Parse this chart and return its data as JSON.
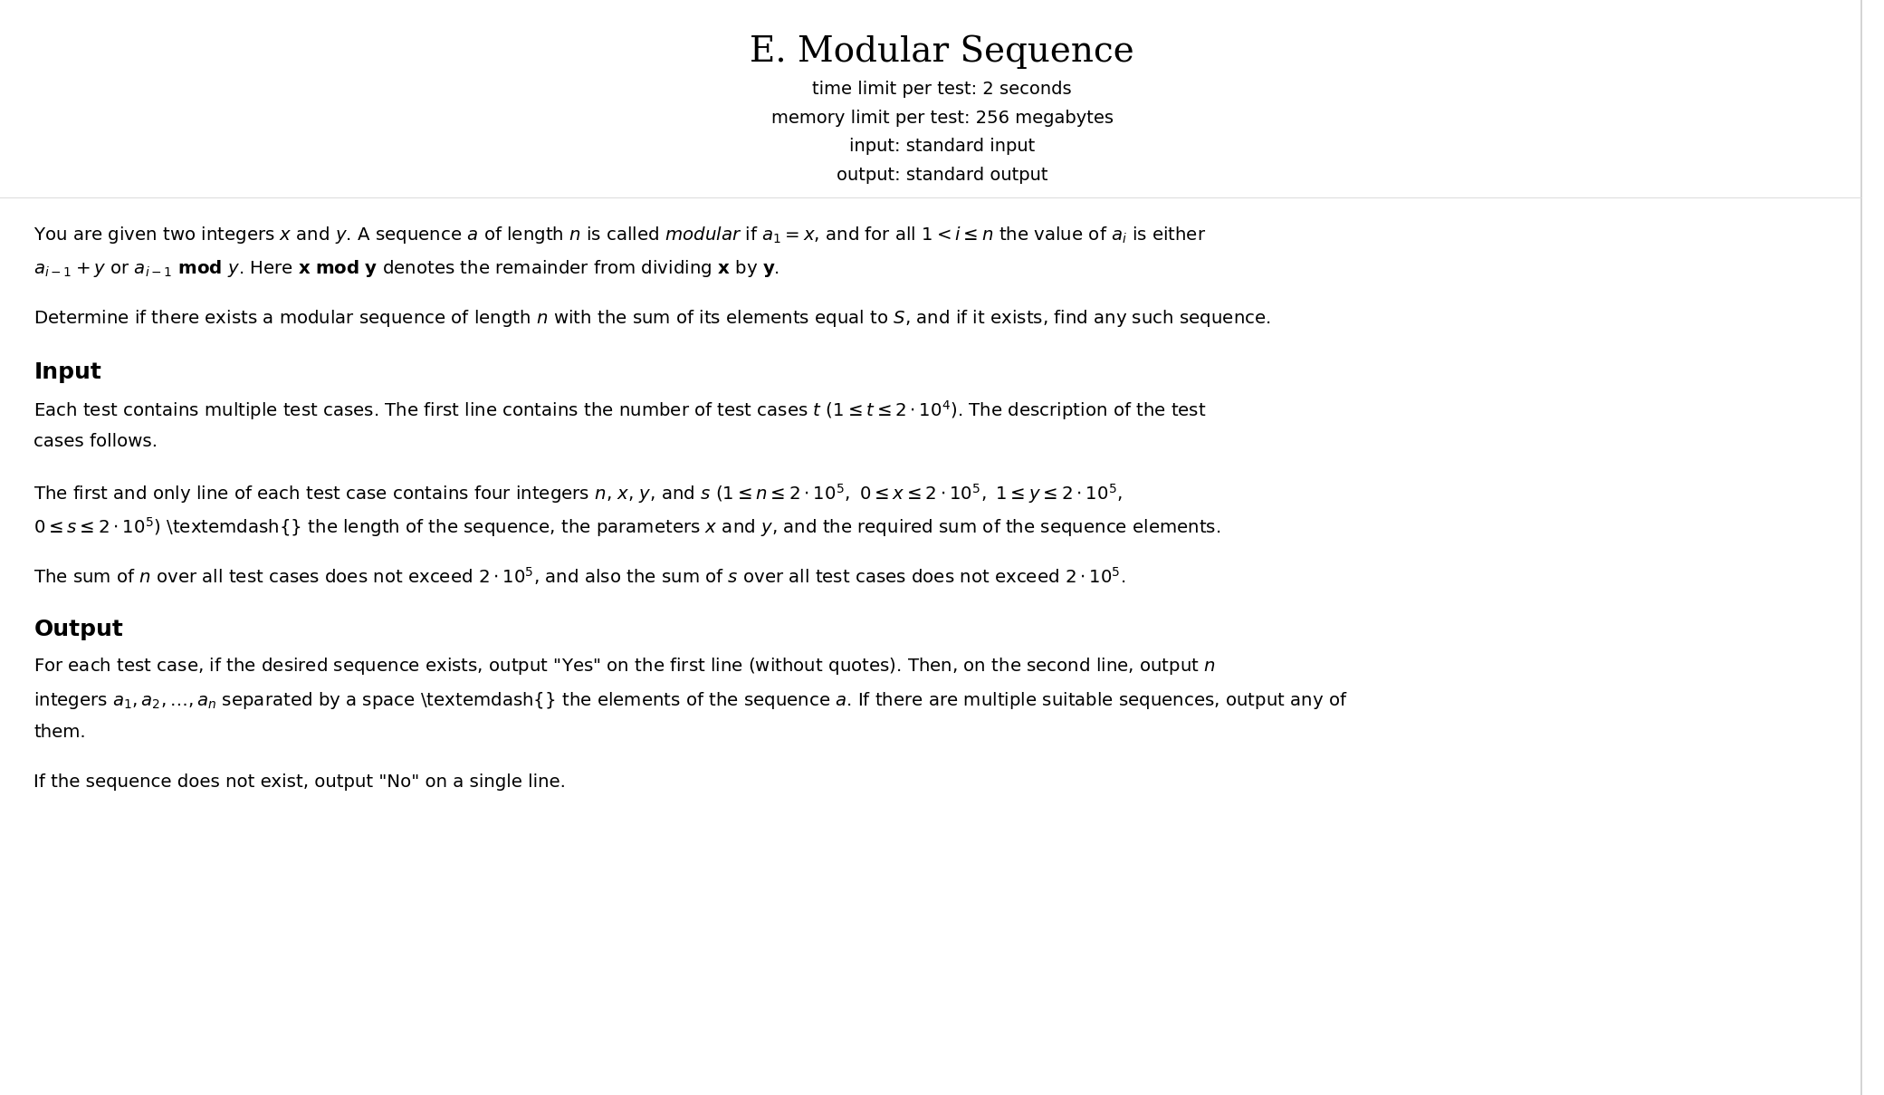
{
  "title": "E. Modular Sequence",
  "subtitle_lines": [
    "time limit per test: 2 seconds",
    "memory limit per test: 256 megabytes",
    "input: standard input",
    "output: standard output"
  ],
  "background": "#ffffff",
  "text_color": "#000000",
  "border_color": "#cccccc",
  "figsize": [
    20.81,
    12.09
  ],
  "dpi": 100
}
